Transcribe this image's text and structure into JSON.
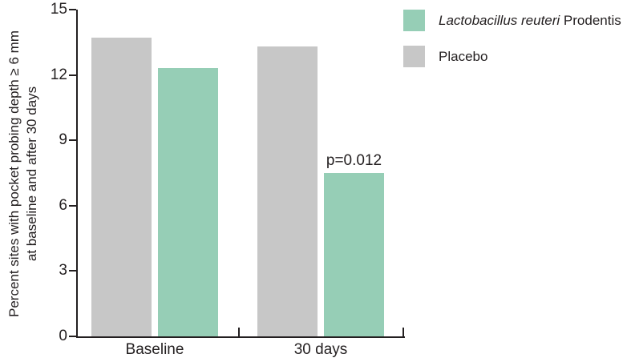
{
  "chart_data": {
    "type": "bar",
    "title": "",
    "categories": [
      "Baseline",
      "30 days"
    ],
    "series": [
      {
        "name": "Lactobacillus reuteri Prodentis",
        "color": "#96ceb6",
        "values": [
          12.3,
          7.5
        ]
      },
      {
        "name": "Placebo",
        "color": "#c7c7c7",
        "values": [
          13.7,
          13.3
        ]
      }
    ],
    "group_order": [
      "Placebo",
      "Lactobacillus reuteri Prodentis"
    ],
    "xlabel": "",
    "ylabel_line1": "Percent sites with pocket probing depth ≥ 6 mm",
    "ylabel_line2": "at baseline and after 30 days",
    "ylim": [
      0,
      15
    ],
    "yticks": [
      0,
      3,
      6,
      9,
      12,
      15
    ],
    "grid": false,
    "legend_position": "top-right",
    "annotations": [
      {
        "text": "p=0.012",
        "category": "30 days",
        "series": "Lactobacillus reuteri Prodentis"
      }
    ]
  },
  "legend": {
    "items": [
      {
        "label_italic": "Lactobacillus reuteri",
        "label_regular": " Prodentis",
        "color": "#96ceb6"
      },
      {
        "label_italic": "",
        "label_regular": "Placebo",
        "color": "#c7c7c7"
      }
    ]
  },
  "colors": {
    "teal": "#96ceb6",
    "gray": "#c7c7c7",
    "axis": "#231f20",
    "text": "#231f20",
    "background": "#ffffff"
  }
}
